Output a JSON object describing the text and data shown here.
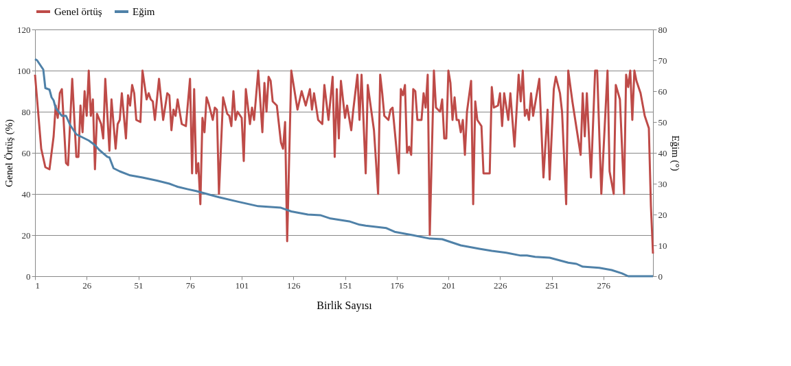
{
  "chart_data": {
    "type": "line",
    "xlabel": "Birlik Sayısı",
    "ylabel": "Genel Örtüş (%)",
    "y2label": "Eğim (°)",
    "xlim": [
      1,
      300
    ],
    "xticks": [
      1,
      26,
      51,
      76,
      101,
      126,
      151,
      176,
      201,
      226,
      251,
      276
    ],
    "ylim": [
      0,
      120
    ],
    "yticks": [
      0,
      20,
      40,
      60,
      80,
      100,
      120
    ],
    "y2lim": [
      0,
      80
    ],
    "y2ticks": [
      0,
      10,
      20,
      30,
      40,
      50,
      60,
      70,
      80
    ],
    "grid": "y",
    "legend": "top",
    "series": [
      {
        "name": "Genel örtüş",
        "color": "#be4b48",
        "x": [
          1,
          4,
          6,
          8,
          10,
          11,
          12,
          13,
          14,
          16,
          17,
          19,
          21,
          22,
          23,
          24,
          25,
          26,
          27,
          28,
          29,
          30,
          31,
          33,
          34,
          35,
          37,
          38,
          40,
          41,
          42,
          43,
          45,
          46,
          47,
          48,
          49,
          50,
          52,
          53,
          55,
          56,
          57,
          58,
          59,
          61,
          63,
          65,
          66,
          67,
          68,
          69,
          70,
          72,
          74,
          76,
          77,
          78,
          79,
          80,
          81,
          82,
          83,
          84,
          85,
          87,
          88,
          89,
          90,
          92,
          94,
          95,
          96,
          97,
          98,
          99,
          101,
          102,
          103,
          105,
          106,
          107,
          109,
          111,
          112,
          113,
          114,
          115,
          116,
          118,
          120,
          121,
          122,
          123,
          125,
          128,
          130,
          132,
          134,
          135,
          136,
          138,
          140,
          141,
          143,
          145,
          146,
          147,
          148,
          149,
          151,
          152,
          154,
          155,
          157,
          158,
          159,
          161,
          162,
          165,
          167,
          168,
          169,
          170,
          172,
          173,
          174,
          177,
          178,
          179,
          180,
          181,
          182,
          183,
          184,
          185,
          186,
          188,
          189,
          190,
          191,
          192,
          194,
          195,
          197,
          198,
          199,
          200,
          201,
          202,
          203,
          204,
          205,
          206,
          207,
          208,
          209,
          210,
          212,
          213,
          214,
          215,
          217,
          218,
          221,
          222,
          223,
          225,
          226,
          227,
          228,
          230,
          231,
          233,
          235,
          236,
          237,
          238,
          239,
          240,
          241,
          242,
          245,
          247,
          249,
          250,
          252,
          253,
          255,
          256,
          258,
          259,
          261,
          263,
          265,
          266,
          267,
          268,
          270,
          272,
          273,
          275,
          278,
          279,
          281,
          282,
          284,
          286,
          287,
          288,
          289,
          290,
          291,
          292,
          294,
          296,
          298,
          299,
          300
        ],
        "values": [
          98,
          62,
          53,
          52,
          68,
          83,
          77,
          89,
          91,
          55,
          54,
          96,
          58,
          58,
          83,
          70,
          90,
          78,
          100,
          78,
          86,
          52,
          79,
          74,
          67,
          96,
          61,
          86,
          62,
          74,
          76,
          89,
          67,
          88,
          83,
          93,
          89,
          76,
          75,
          100,
          86,
          89,
          86,
          85,
          76,
          96,
          76,
          89,
          88,
          71,
          81,
          78,
          86,
          74,
          73,
          96,
          50,
          91,
          50,
          55,
          35,
          77,
          70,
          87,
          84,
          76,
          82,
          81,
          40,
          87,
          79,
          78,
          73,
          90,
          76,
          80,
          77,
          56,
          91,
          74,
          82,
          76,
          100,
          70,
          94,
          80,
          97,
          95,
          85,
          83,
          65,
          62,
          75,
          17,
          100,
          81,
          90,
          83,
          91,
          81,
          89,
          76,
          74,
          93,
          76,
          97,
          58,
          91,
          67,
          95,
          77,
          83,
          71,
          81,
          98,
          76,
          98,
          50,
          93,
          71,
          40,
          98,
          89,
          78,
          76,
          81,
          82,
          50,
          91,
          88,
          93,
          60,
          63,
          59,
          91,
          90,
          76,
          76,
          89,
          82,
          98,
          20,
          100,
          82,
          80,
          86,
          67,
          67,
          100,
          94,
          76,
          87,
          76,
          76,
          70,
          76,
          59,
          80,
          95,
          35,
          85,
          76,
          73,
          50,
          50,
          92,
          82,
          83,
          89,
          73,
          89,
          76,
          89,
          63,
          98,
          85,
          100,
          78,
          81,
          76,
          89,
          78,
          96,
          48,
          81,
          47,
          91,
          97,
          89,
          80,
          35,
          100,
          85,
          72,
          59,
          89,
          68,
          89,
          48,
          100,
          100,
          40,
          100,
          51,
          40,
          93,
          86,
          40,
          98,
          92,
          100,
          76,
          100,
          95,
          89,
          78,
          72,
          34,
          11
        ]
      },
      {
        "name": "Eğim",
        "color": "#4f81a8",
        "axis": "y2",
        "x": [
          1,
          2,
          4,
          5,
          6,
          8,
          9,
          10,
          11,
          14,
          16,
          18,
          21,
          24,
          27,
          30,
          32,
          36,
          37,
          39,
          42,
          47,
          53,
          60,
          66,
          70,
          75,
          79,
          90,
          99,
          109,
          120,
          125,
          133,
          139,
          144,
          153,
          158,
          161,
          171,
          175,
          184,
          192,
          198,
          207,
          216,
          222,
          229,
          236,
          239,
          243,
          250,
          259,
          263,
          266,
          274,
          280,
          285,
          288,
          300
        ],
        "values": [
          70.4,
          70,
          68,
          67,
          61,
          60.5,
          58,
          57,
          54.5,
          52,
          52,
          49,
          46,
          45,
          44,
          42.5,
          41,
          38.7,
          38.5,
          35,
          34,
          32.7,
          32,
          31,
          30,
          29,
          28.2,
          27.6,
          25.6,
          24.2,
          22.7,
          22.2,
          21,
          20,
          19.8,
          18.7,
          17.8,
          16.7,
          16.4,
          15.6,
          14.4,
          13.3,
          12.2,
          12,
          10,
          8.9,
          8.2,
          7.6,
          6.7,
          6.7,
          6.3,
          6,
          4.4,
          4,
          3.1,
          2.7,
          2,
          0.9,
          0,
          0
        ]
      }
    ]
  }
}
